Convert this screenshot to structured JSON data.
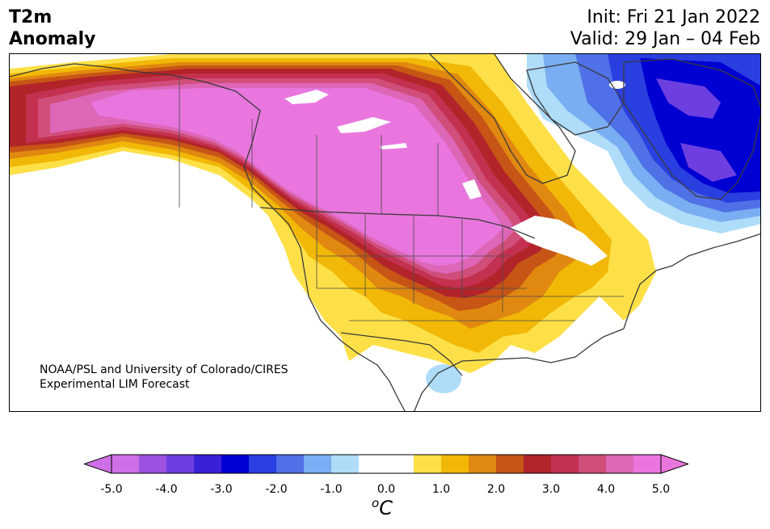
{
  "title": {
    "line1": "T2m",
    "line2": "Anomaly"
  },
  "dates": {
    "init": "Init: Fri 21 Jan 2022",
    "valid": "Valid: 29 Jan – 04 Feb"
  },
  "credit": {
    "line1": "NOAA/PSL and University of Colorado/CIRES",
    "line2": "Experimental LIM Forecast"
  },
  "colorbar": {
    "unit_base": "o",
    "unit": "C",
    "colors": [
      "#cf6fe6",
      "#9b52e0",
      "#6d3fe0",
      "#3a20d6",
      "#0000d2",
      "#2a3fe0",
      "#4f70e6",
      "#7aaef2",
      "#aedcf9",
      "#ffffff",
      "#ffffff",
      "#fde047",
      "#f2b807",
      "#e08810",
      "#c65516",
      "#b2242a",
      "#c43150",
      "#d04e7a",
      "#dd66b7",
      "#e976de"
    ],
    "ticks": [
      "-5.0",
      "-4.0",
      "-3.0",
      "-2.0",
      "-1.0",
      "0.0",
      "1.0",
      "2.0",
      "3.0",
      "4.0",
      "5.0"
    ]
  },
  "map": {
    "extend": "both",
    "legend_placement": "bottom"
  }
}
